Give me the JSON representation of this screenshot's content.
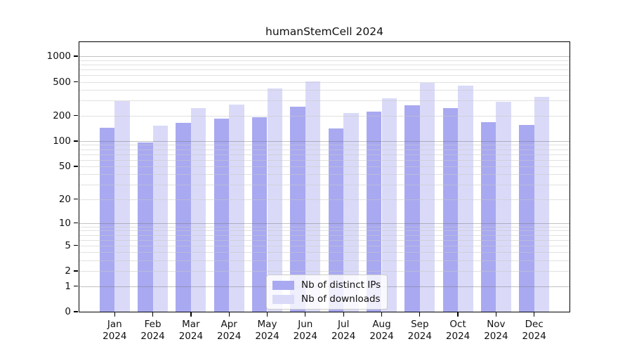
{
  "chart_data": {
    "type": "bar",
    "title": "humanStemCell 2024",
    "categories": [
      "Jan",
      "Feb",
      "Mar",
      "Apr",
      "May",
      "Jun",
      "Jul",
      "Aug",
      "Sep",
      "Oct",
      "Nov",
      "Dec"
    ],
    "x_sublabel": "2024",
    "series": [
      {
        "name": "Nb of distinct IPs",
        "color": "#a9a9f1",
        "values": [
          145,
          97,
          163,
          186,
          193,
          256,
          142,
          224,
          265,
          244,
          168,
          154
        ]
      },
      {
        "name": "Nb of downloads",
        "color": "#dadaf8",
        "values": [
          298,
          152,
          245,
          271,
          421,
          502,
          216,
          319,
          485,
          449,
          292,
          333
        ]
      }
    ],
    "yscale": "log10(value+1)",
    "ylim": [
      0,
      1464
    ],
    "ytick_values": [
      0,
      1,
      2,
      5,
      10,
      20,
      50,
      100,
      200,
      500,
      1000
    ],
    "ytick_labels": [
      "0",
      "1",
      "2",
      "5",
      "10",
      "20",
      "50",
      "100",
      "200",
      "500",
      "1000"
    ],
    "major_gridline_values": [
      1,
      10,
      100,
      1000
    ],
    "minor_gridline_values": [
      2,
      3,
      4,
      5,
      6,
      7,
      8,
      9,
      20,
      30,
      40,
      50,
      60,
      70,
      80,
      90,
      200,
      300,
      400,
      500,
      600,
      700,
      800,
      900
    ],
    "grid": true,
    "legend_position": "inside lower-center",
    "colors": {
      "major_grid": "rgba(110,110,110,0.42)",
      "minor_grid": "rgba(200,200,200,0.55)",
      "axis": "#000000",
      "text": "#111111"
    }
  }
}
